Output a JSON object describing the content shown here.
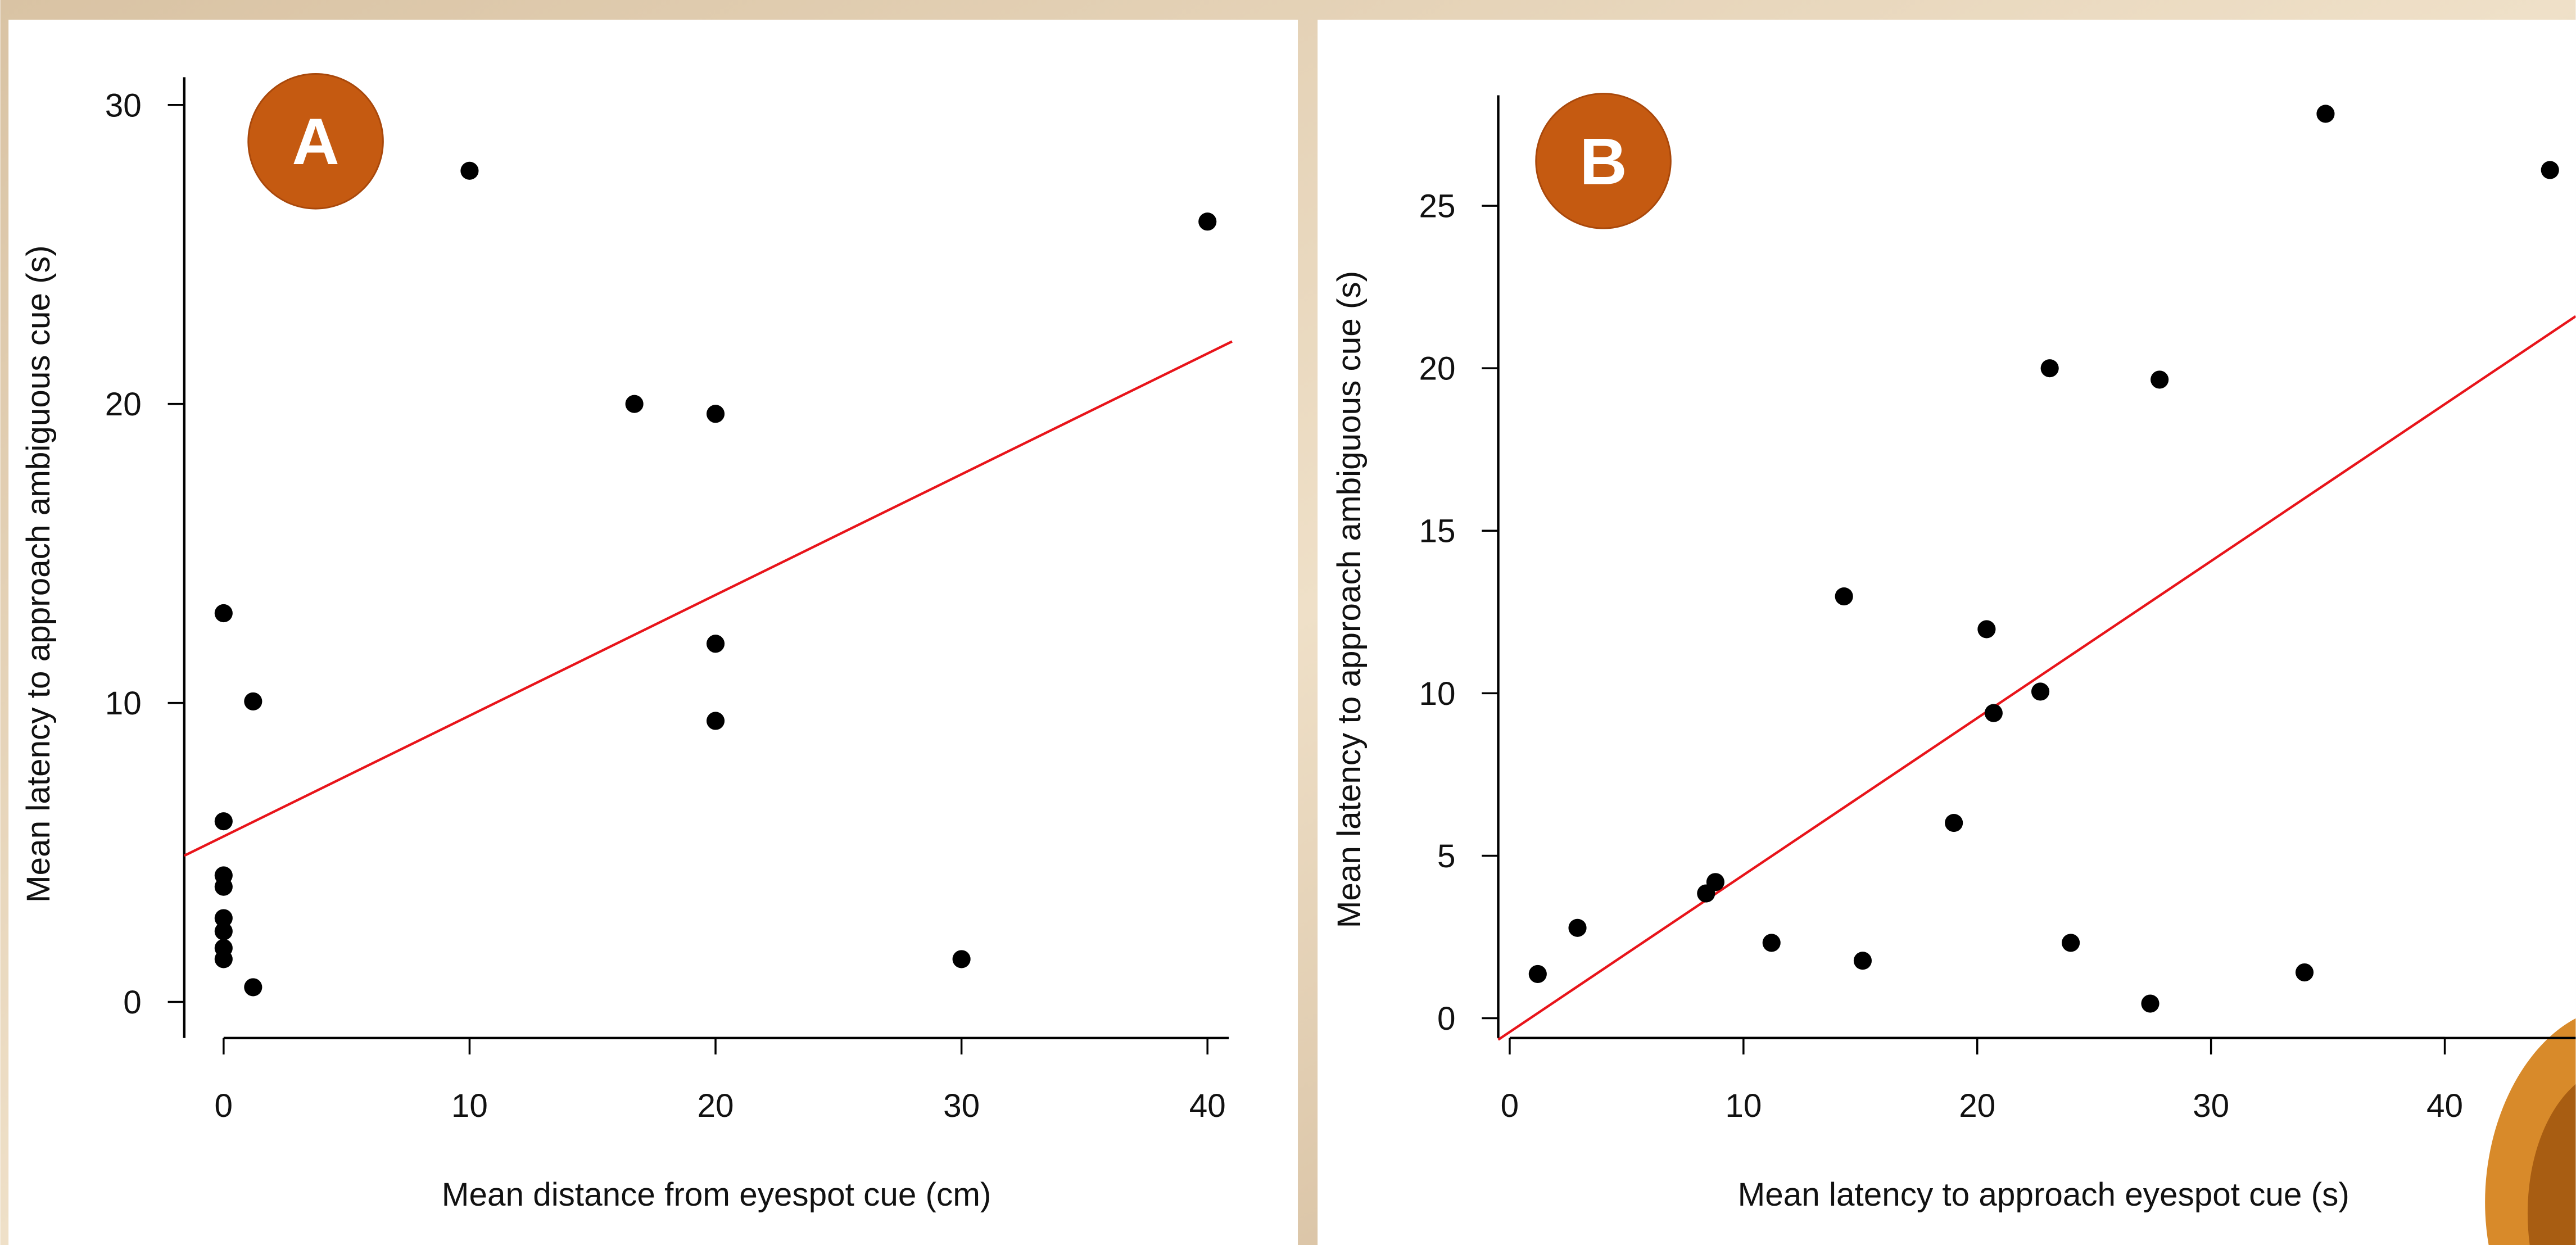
{
  "chart_data": [
    {
      "type": "scatter",
      "panel": "A",
      "x_label": "Mean distance from eyespot cue (cm)",
      "y_label": "Mean latency to approach ambiguous cue (s)",
      "xlim": [
        -1.6,
        40.87
      ],
      "ylim": [
        -1.21,
        30.93
      ],
      "xticks": [
        0,
        10,
        20,
        30,
        40
      ],
      "yticks": [
        0,
        10,
        20,
        30
      ],
      "series": [
        {
          "color": "#000000",
          "x": [
            0,
            1.2,
            0,
            0,
            0,
            0,
            0,
            0,
            0,
            1.2,
            10.0,
            16.7,
            20.0,
            20.0,
            20.0,
            30.0,
            40.0
          ],
          "values": [
            13.0,
            10.05,
            6.04,
            4.23,
            3.85,
            2.8,
            2.36,
            1.8,
            1.43,
            0.49,
            27.8,
            20.0,
            19.67,
            11.98,
            9.4,
            1.43,
            26.1
          ]
        }
      ],
      "trend_line": {
        "color": "#e8141a",
        "x": [
          -1.6,
          41.0
        ],
        "values": [
          4.89,
          22.09
        ]
      }
    },
    {
      "type": "scatter",
      "panel": "B",
      "x_label": "Mean latency to approach eyespot cue (s)",
      "y_label": "Mean latency to approach ambiguous cue (s)",
      "xlim": [
        -0.49,
        45.6
      ],
      "ylim": [
        -0.61,
        28.4
      ],
      "xticks": [
        0,
        10,
        20,
        30,
        40
      ],
      "yticks": [
        0,
        5,
        10,
        15,
        20,
        25
      ],
      "series": [
        {
          "color": "#000000",
          "x": [
            1.2,
            2.9,
            8.4,
            8.8,
            11.2,
            14.3,
            15.1,
            19.0,
            20.4,
            20.7,
            22.7,
            23.1,
            24.0,
            27.4,
            27.8,
            34.0,
            34.9,
            44.5
          ],
          "values": [
            1.36,
            2.78,
            3.84,
            4.19,
            2.32,
            12.98,
            1.77,
            6.01,
            11.97,
            9.39,
            10.05,
            20.0,
            2.32,
            0.45,
            19.65,
            1.41,
            27.83,
            26.1
          ]
        }
      ],
      "trend_line": {
        "color": "#e8141a",
        "x": [
          -0.49,
          45.6
        ],
        "values": [
          -0.66,
          21.6
        ]
      }
    }
  ]
}
